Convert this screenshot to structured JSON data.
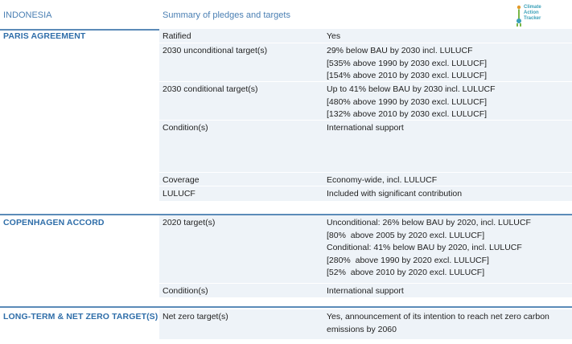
{
  "header": {
    "country": "INDONESIA",
    "summary": "Summary of pledges and targets",
    "logo_lines": [
      "Climate",
      "Action",
      "Tracker"
    ]
  },
  "sections": [
    {
      "title": "PARIS AGREEMENT",
      "rows": [
        {
          "label": "Ratified",
          "lines": [
            "Yes"
          ]
        },
        {
          "label": "2030 unconditional target(s)",
          "lines": [
            "29% below BAU by 2030 incl. LULUCF",
            "[535% above 1990 by 2030 excl. LULUCF]",
            "[154% above 2010 by 2030 excl. LULUCF]"
          ]
        },
        {
          "label": "2030 conditional target(s)",
          "lines": [
            "Up to 41% below BAU by 2030 incl. LULUCF",
            "[480% above 1990 by 2030 excl. LULUCF]",
            "[132% above 2010 by 2030 excl. LULUCF]"
          ]
        },
        {
          "label": "Condition(s)",
          "lines": [
            "International support"
          ]
        },
        {
          "label": "Coverage",
          "lines": [
            "Economy-wide, incl. LULUCF"
          ]
        },
        {
          "label": "LULUCF",
          "lines": [
            "Included with significant contribution"
          ]
        }
      ]
    },
    {
      "title": "COPENHAGEN ACCORD",
      "rows": [
        {
          "label": "2020 target(s)",
          "lines": [
            "Unconditional: 26% below BAU by 2020, incl. LULUCF",
            "[80%  above 2005 by 2020 excl. LULUCF]",
            "Conditional: 41% below BAU by 2020, incl. LULUCF",
            "[280%  above 1990 by 2020 excl. LULUCF]",
            "[52%  above 2010 by 2020 excl. LULUCF]"
          ]
        },
        {
          "label": "Condition(s)",
          "lines": [
            "International support"
          ]
        }
      ]
    },
    {
      "title": "LONG-TERM & NET ZERO TARGET(S)",
      "rows": [
        {
          "label": "Net zero target(s)",
          "lines": [
            "Yes, announcement of its intention to reach net zero carbon",
            "emissions by 2060"
          ]
        }
      ]
    }
  ]
}
